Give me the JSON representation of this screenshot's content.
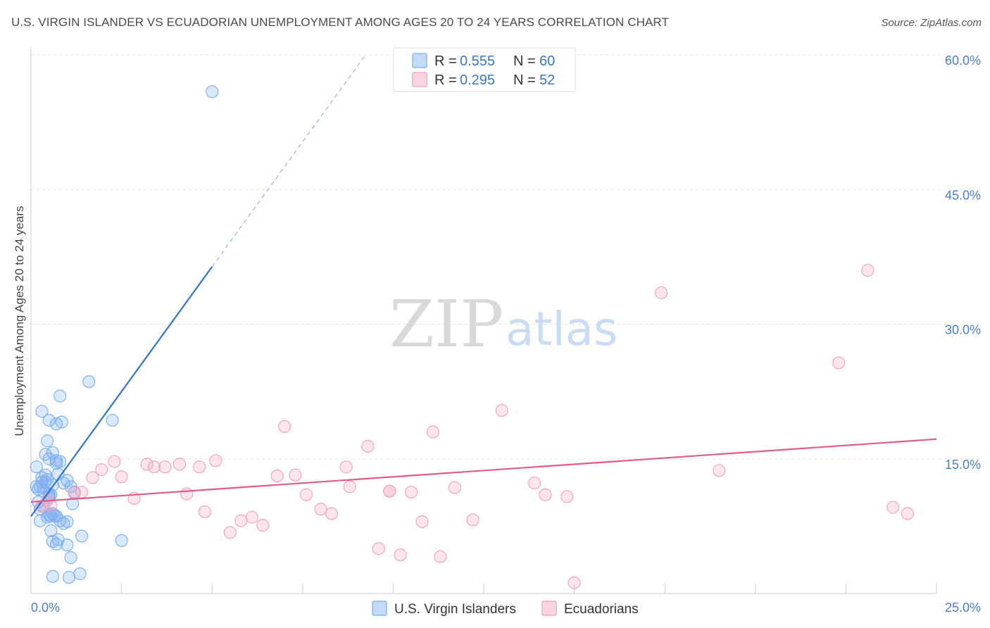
{
  "chart_data": {
    "type": "scatter",
    "title": "U.S. VIRGIN ISLANDER VS ECUADORIAN UNEMPLOYMENT AMONG AGES 20 TO 24 YEARS CORRELATION CHART",
    "source": "Source: ZipAtlas.com",
    "ylabel": "Unemployment Among Ages 20 to 24 years",
    "xlim": [
      0,
      25
    ],
    "ylim": [
      0,
      60
    ],
    "y_ticks": [
      {
        "value": 15,
        "label": "15.0%"
      },
      {
        "value": 30,
        "label": "30.0%"
      },
      {
        "value": 45,
        "label": "45.0%"
      },
      {
        "value": 60,
        "label": "60.0%"
      }
    ],
    "x_tick_labels": {
      "min": "0.0%",
      "max": "25.0%"
    },
    "watermark": {
      "zip": "ZIP",
      "atlas": "atlas"
    },
    "legend": [
      {
        "r_label": "R =",
        "r_value": "0.555",
        "n_label": "N =",
        "n_value": "60",
        "color": "#7aaef0"
      },
      {
        "r_label": "R =",
        "r_value": "0.295",
        "n_label": "N =",
        "n_value": "52",
        "color": "#f4a0bc"
      }
    ],
    "series": [
      {
        "name": "U.S. Virgin Islanders",
        "color": "#7aaef0",
        "line_color": "#2f74d0",
        "trend": {
          "x0": 0.0,
          "y0": 8.6,
          "x1": 5.0,
          "y1": 36.4,
          "dash_x1": 9.2,
          "dash_y1": 59.8
        },
        "points": [
          [
            0.15,
            11.9
          ],
          [
            0.2,
            11.6
          ],
          [
            0.15,
            14.1
          ],
          [
            0.3,
            12.4
          ],
          [
            0.25,
            11.9
          ],
          [
            0.2,
            10.2
          ],
          [
            0.35,
            11.4
          ],
          [
            0.3,
            12.9
          ],
          [
            0.4,
            13.2
          ],
          [
            0.45,
            12.7
          ],
          [
            0.5,
            11.1
          ],
          [
            0.5,
            10.9
          ],
          [
            0.6,
            12.1
          ],
          [
            0.35,
            9.7
          ],
          [
            0.25,
            9.4
          ],
          [
            0.45,
            8.5
          ],
          [
            0.5,
            8.8
          ],
          [
            0.55,
            8.6
          ],
          [
            0.6,
            8.9
          ],
          [
            0.65,
            8.7
          ],
          [
            0.7,
            8.6
          ],
          [
            0.8,
            8.1
          ],
          [
            0.25,
            8.1
          ],
          [
            0.55,
            7.0
          ],
          [
            0.6,
            5.8
          ],
          [
            0.7,
            5.5
          ],
          [
            0.75,
            6.0
          ],
          [
            0.9,
            7.8
          ],
          [
            1.0,
            8.0
          ],
          [
            1.0,
            5.4
          ],
          [
            1.1,
            4.0
          ],
          [
            1.35,
            2.2
          ],
          [
            1.05,
            1.8
          ],
          [
            0.6,
            1.9
          ],
          [
            1.4,
            6.4
          ],
          [
            2.5,
            5.9
          ],
          [
            0.5,
            10.7
          ],
          [
            0.55,
            11.0
          ],
          [
            1.1,
            11.9
          ],
          [
            1.15,
            10.0
          ],
          [
            1.2,
            11.3
          ],
          [
            0.4,
            15.5
          ],
          [
            0.5,
            15.0
          ],
          [
            0.6,
            15.7
          ],
          [
            0.7,
            14.8
          ],
          [
            0.7,
            14.5
          ],
          [
            0.75,
            13.3
          ],
          [
            0.8,
            14.7
          ],
          [
            0.9,
            12.3
          ],
          [
            1.0,
            12.6
          ],
          [
            0.45,
            17.0
          ],
          [
            0.3,
            20.3
          ],
          [
            0.5,
            19.3
          ],
          [
            0.7,
            18.9
          ],
          [
            0.85,
            19.1
          ],
          [
            0.8,
            22.0
          ],
          [
            1.6,
            23.6
          ],
          [
            2.25,
            19.3
          ],
          [
            5.0,
            55.9
          ],
          [
            0.4,
            12.4
          ]
        ]
      },
      {
        "name": "Ecuadorians",
        "color": "#f4a0bc",
        "line_color": "#e05a8a",
        "trend": {
          "x0": 0.0,
          "y0": 10.2,
          "x1": 25.0,
          "y1": 17.2
        },
        "points": [
          [
            0.3,
            9.7
          ],
          [
            0.45,
            10.4
          ],
          [
            0.55,
            9.8
          ],
          [
            1.2,
            11.2
          ],
          [
            1.4,
            11.3
          ],
          [
            1.7,
            12.9
          ],
          [
            1.95,
            13.8
          ],
          [
            2.3,
            14.7
          ],
          [
            2.5,
            13.0
          ],
          [
            2.85,
            10.6
          ],
          [
            3.2,
            14.4
          ],
          [
            3.4,
            14.1
          ],
          [
            3.7,
            14.1
          ],
          [
            4.1,
            14.4
          ],
          [
            4.3,
            11.1
          ],
          [
            4.65,
            14.1
          ],
          [
            4.8,
            9.1
          ],
          [
            5.1,
            14.8
          ],
          [
            5.5,
            6.8
          ],
          [
            5.8,
            8.1
          ],
          [
            6.1,
            8.5
          ],
          [
            6.4,
            7.6
          ],
          [
            6.8,
            13.1
          ],
          [
            7.0,
            18.6
          ],
          [
            7.3,
            13.2
          ],
          [
            7.6,
            11.0
          ],
          [
            8.0,
            9.4
          ],
          [
            8.3,
            8.9
          ],
          [
            8.7,
            14.1
          ],
          [
            8.8,
            11.9
          ],
          [
            9.3,
            16.4
          ],
          [
            9.6,
            5.0
          ],
          [
            9.9,
            11.4
          ],
          [
            10.2,
            4.3
          ],
          [
            10.5,
            11.3
          ],
          [
            10.8,
            8.0
          ],
          [
            11.1,
            18.0
          ],
          [
            11.3,
            4.1
          ],
          [
            11.7,
            11.8
          ],
          [
            12.2,
            8.2
          ],
          [
            13.0,
            20.4
          ],
          [
            13.9,
            12.3
          ],
          [
            14.2,
            11.0
          ],
          [
            14.8,
            10.8
          ],
          [
            15.0,
            1.2
          ],
          [
            17.4,
            33.5
          ],
          [
            19.0,
            13.7
          ],
          [
            22.3,
            25.7
          ],
          [
            23.1,
            36.0
          ],
          [
            23.8,
            9.6
          ],
          [
            24.2,
            8.9
          ],
          [
            9.9,
            11.4
          ]
        ]
      }
    ]
  }
}
